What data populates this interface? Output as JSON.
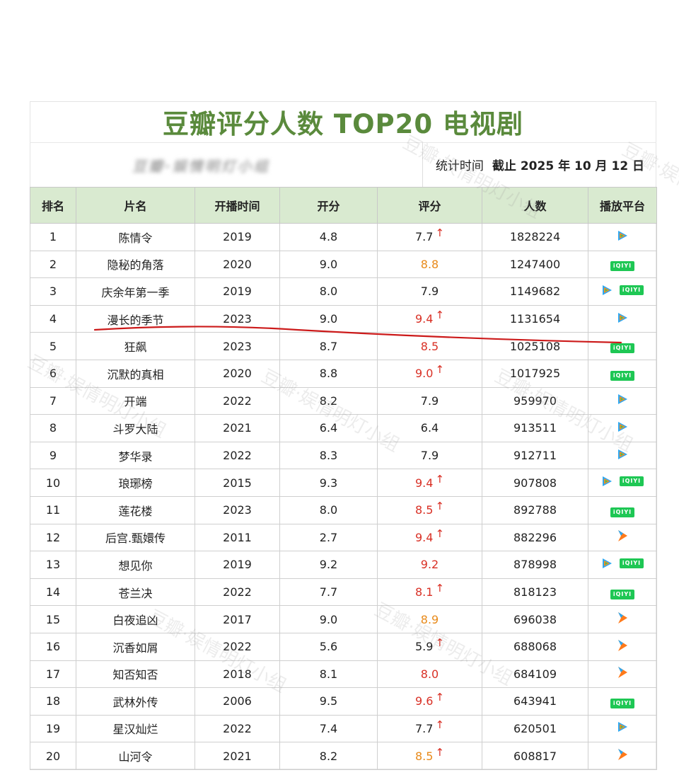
{
  "title": "豆瓣评分人数 TOP20 电视剧",
  "subtitle_blurred": "豆瓣·娱情明灯小组",
  "stat": {
    "label": "统计时间",
    "value": "截止 2025 年 10 月 12 日"
  },
  "headers": [
    "排名",
    "片名",
    "开播时间",
    "开分",
    "评分",
    "人数",
    "播放平台"
  ],
  "colors": {
    "title": "#5a8a3c",
    "header_bg": "#d9ead0",
    "red": "#d93025",
    "orange": "#e88a1a",
    "iqiyi": "#1ec754"
  },
  "watermark": "豆瓣·娱情明灯小组",
  "rows": [
    {
      "rank": "1",
      "name": "陈情令",
      "year": "2019",
      "open": "4.8",
      "score": "7.7",
      "color": "black",
      "up": true,
      "count": "1828224",
      "platforms": [
        "tencent"
      ]
    },
    {
      "rank": "2",
      "name": "隐秘的角落",
      "year": "2020",
      "open": "9.0",
      "score": "8.8",
      "color": "orange",
      "up": false,
      "count": "1247400",
      "platforms": [
        "iqiyi"
      ]
    },
    {
      "rank": "3",
      "name": "庆余年第一季",
      "year": "2019",
      "open": "8.0",
      "score": "7.9",
      "color": "black",
      "up": false,
      "count": "1149682",
      "platforms": [
        "tencent",
        "iqiyi"
      ]
    },
    {
      "rank": "4",
      "name": "漫长的季节",
      "year": "2023",
      "open": "9.0",
      "score": "9.4",
      "color": "red",
      "up": true,
      "count": "1131654",
      "platforms": [
        "tencent"
      ]
    },
    {
      "rank": "5",
      "name": "狂飙",
      "year": "2023",
      "open": "8.7",
      "score": "8.5",
      "color": "red",
      "up": false,
      "count": "1025108",
      "platforms": [
        "iqiyi"
      ]
    },
    {
      "rank": "6",
      "name": "沉默的真相",
      "year": "2020",
      "open": "8.8",
      "score": "9.0",
      "color": "red",
      "up": true,
      "count": "1017925",
      "platforms": [
        "iqiyi"
      ]
    },
    {
      "rank": "7",
      "name": "开端",
      "year": "2022",
      "open": "8.2",
      "score": "7.9",
      "color": "black",
      "up": false,
      "count": "959970",
      "platforms": [
        "tencent"
      ]
    },
    {
      "rank": "8",
      "name": "斗罗大陆",
      "year": "2021",
      "open": "6.4",
      "score": "6.4",
      "color": "black",
      "up": false,
      "count": "913511",
      "platforms": [
        "tencent"
      ]
    },
    {
      "rank": "9",
      "name": "梦华录",
      "year": "2022",
      "open": "8.3",
      "score": "7.9",
      "color": "black",
      "up": false,
      "count": "912711",
      "platforms": [
        "tencent"
      ]
    },
    {
      "rank": "10",
      "name": "琅琊榜",
      "year": "2015",
      "open": "9.3",
      "score": "9.4",
      "color": "red",
      "up": true,
      "count": "907808",
      "platforms": [
        "tencent",
        "iqiyi"
      ]
    },
    {
      "rank": "11",
      "name": "莲花楼",
      "year": "2023",
      "open": "8.0",
      "score": "8.5",
      "color": "red",
      "up": true,
      "count": "892788",
      "platforms": [
        "iqiyi"
      ]
    },
    {
      "rank": "12",
      "name": "后宫.甄嬛传",
      "year": "2011",
      "open": "2.7",
      "score": "9.4",
      "color": "red",
      "up": true,
      "count": "882296",
      "platforms": [
        "mango"
      ]
    },
    {
      "rank": "13",
      "name": "想见你",
      "year": "2019",
      "open": "9.2",
      "score": "9.2",
      "color": "red",
      "up": false,
      "count": "878998",
      "platforms": [
        "tencent",
        "iqiyi"
      ]
    },
    {
      "rank": "14",
      "name": "苍兰决",
      "year": "2022",
      "open": "7.7",
      "score": "8.1",
      "color": "red",
      "up": true,
      "count": "818123",
      "platforms": [
        "iqiyi"
      ]
    },
    {
      "rank": "15",
      "name": "白夜追凶",
      "year": "2017",
      "open": "9.0",
      "score": "8.9",
      "color": "orange",
      "up": false,
      "count": "696038",
      "platforms": [
        "mango"
      ]
    },
    {
      "rank": "16",
      "name": "沉香如屑",
      "year": "2022",
      "open": "5.6",
      "score": "5.9",
      "color": "black",
      "up": true,
      "count": "688068",
      "platforms": [
        "mango"
      ]
    },
    {
      "rank": "17",
      "name": "知否知否",
      "year": "2018",
      "open": "8.1",
      "score": "8.0",
      "color": "red",
      "up": false,
      "count": "684109",
      "platforms": [
        "mango"
      ]
    },
    {
      "rank": "18",
      "name": "武林外传",
      "year": "2006",
      "open": "9.5",
      "score": "9.6",
      "color": "red",
      "up": true,
      "count": "643941",
      "platforms": [
        "iqiyi"
      ]
    },
    {
      "rank": "19",
      "name": "星汉灿烂",
      "year": "2022",
      "open": "7.4",
      "score": "7.7",
      "color": "black",
      "up": true,
      "count": "620501",
      "platforms": [
        "tencent"
      ]
    },
    {
      "rank": "20",
      "name": "山河令",
      "year": "2021",
      "open": "8.2",
      "score": "8.5",
      "color": "orange",
      "up": true,
      "count": "608817",
      "platforms": [
        "mango"
      ]
    }
  ]
}
